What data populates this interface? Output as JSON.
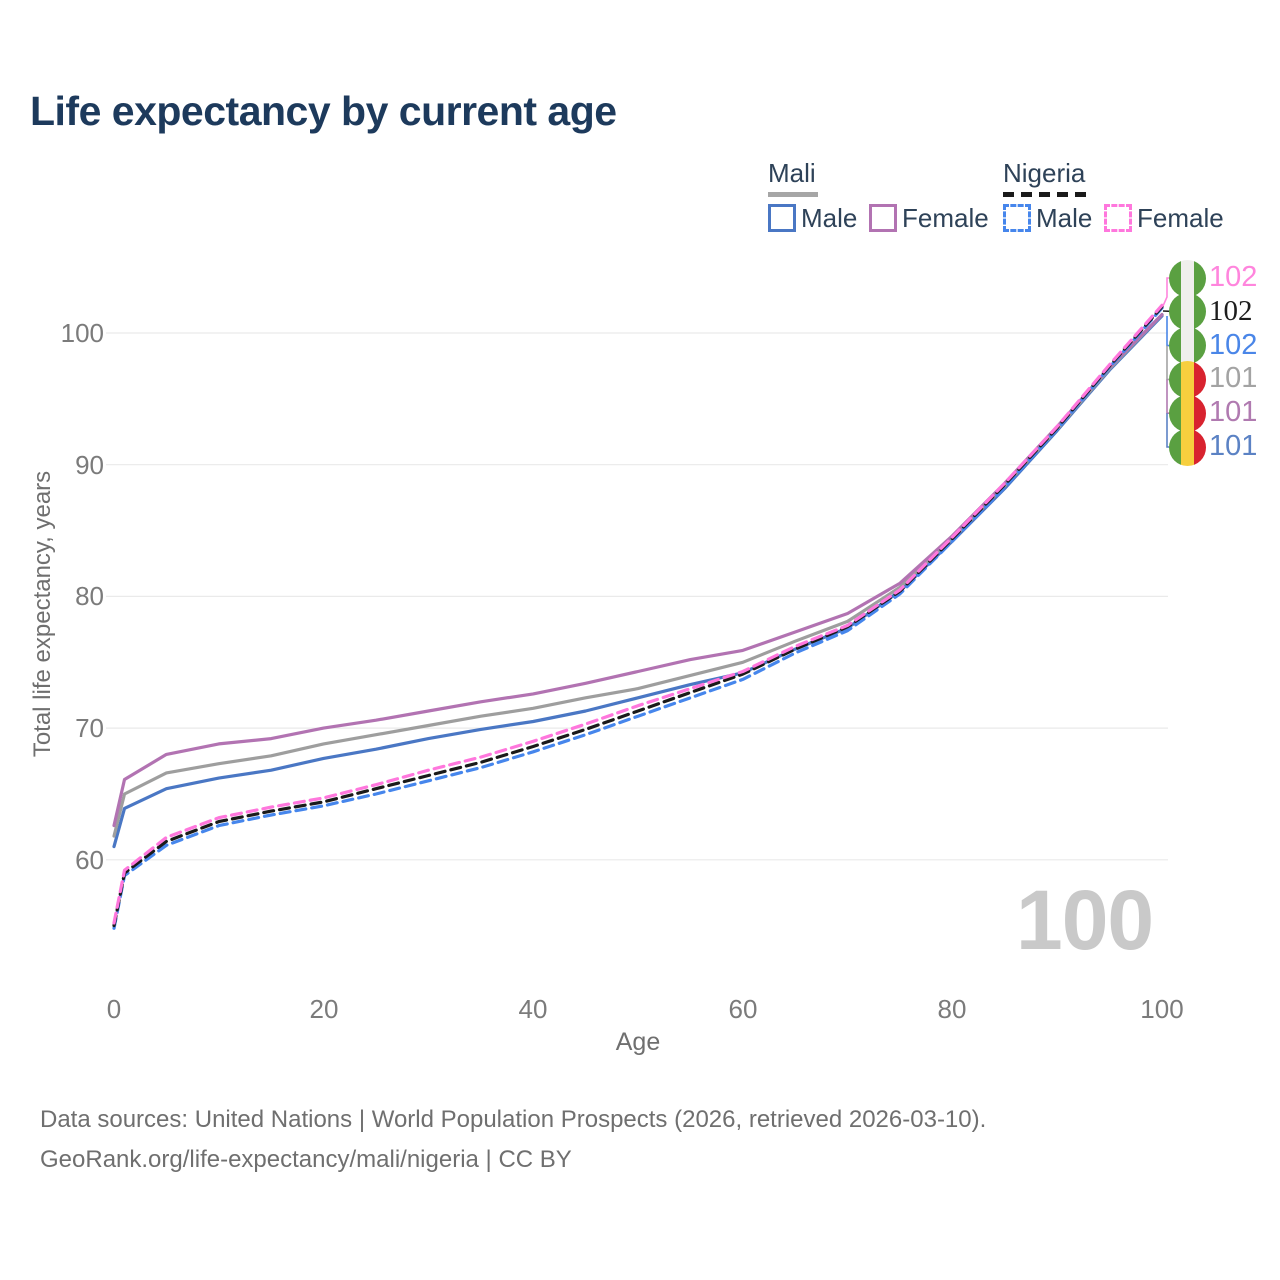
{
  "title": "Life expectancy by current age",
  "legend": {
    "groups": [
      {
        "name": "Mali",
        "line_style": "solid",
        "underline_color": "#a6a6a6",
        "entries": [
          {
            "label": "Male",
            "color": "#4a77c4",
            "dashed": false
          },
          {
            "label": "Female",
            "color": "#b273b2",
            "dashed": false
          }
        ]
      },
      {
        "name": "Nigeria",
        "line_style": "dashed",
        "underline_color": "#1a1a1a",
        "entries": [
          {
            "label": "Male",
            "color": "#4686ec",
            "dashed": true
          },
          {
            "label": "Female",
            "color": "#ff77dd",
            "dashed": true
          }
        ]
      }
    ]
  },
  "axes": {
    "y_label": "Total life expectancy, years",
    "x_label": "Age",
    "y_ticks": [
      100,
      90,
      80,
      70,
      60
    ],
    "x_ticks": [
      0,
      20,
      40,
      60,
      80,
      100
    ]
  },
  "hover": {
    "age_watermark": "100"
  },
  "end_labels": [
    {
      "value": "102",
      "color": "#ff85dd",
      "flag": "nigeria",
      "series": "Nigeria Female",
      "serif": false
    },
    {
      "value": "102",
      "color": "#1d1d1d",
      "flag": "nigeria",
      "series": "Nigeria (both sexes)",
      "serif": true
    },
    {
      "value": "102",
      "color": "#4a86e8",
      "flag": "nigeria",
      "series": "Nigeria Male",
      "serif": false
    },
    {
      "value": "101",
      "color": "#a3a3a3",
      "flag": "mali",
      "series": "Mali (both sexes)",
      "serif": false
    },
    {
      "value": "101",
      "color": "#b07ab0",
      "flag": "mali",
      "series": "Mali Female",
      "serif": false
    },
    {
      "value": "101",
      "color": "#5b82c4",
      "flag": "mali",
      "series": "Mali Male",
      "serif": false
    }
  ],
  "flags": {
    "mali": [
      "#5aa041",
      "#f7cf3e",
      "#d8232f"
    ],
    "nigeria": [
      "#5aa041",
      "#efefec",
      "#5aa041"
    ]
  },
  "colors": {
    "title": "#1d3a5c",
    "gridline": "#eaeaea",
    "tick_text": "#7b7b7b",
    "watermark": "#c9c9c9"
  },
  "source": {
    "line1": "Data sources: United Nations | World Population Prospects (2026, retrieved 2026-03-10).",
    "line2": "GeoRank.org/life-expectancy/mali/nigeria | CC BY"
  },
  "chart_data": {
    "type": "line",
    "title": "Life expectancy by current age",
    "xlabel": "Age",
    "ylabel": "Total life expectancy, years",
    "x_range": [
      0,
      100
    ],
    "y_ticks": [
      60,
      70,
      80,
      90,
      100
    ],
    "grid": "horizontal",
    "legend_position": "top-right",
    "x": [
      0,
      1,
      5,
      10,
      15,
      20,
      25,
      30,
      35,
      40,
      45,
      50,
      55,
      60,
      65,
      70,
      75,
      80,
      85,
      90,
      95,
      100
    ],
    "series": [
      {
        "name": "Mali Male",
        "color": "#4a77c4",
        "dash": "solid",
        "values": [
          61.0,
          63.9,
          65.4,
          66.2,
          66.8,
          67.7,
          68.4,
          69.2,
          69.9,
          70.5,
          71.3,
          72.3,
          73.3,
          74.2,
          76.0,
          77.6,
          80.4,
          84.2,
          88.2,
          92.6,
          97.2,
          101.3
        ]
      },
      {
        "name": "Mali (both sexes)",
        "color": "#9e9e9e",
        "dash": "solid",
        "values": [
          61.8,
          65.0,
          66.6,
          67.3,
          67.9,
          68.8,
          69.5,
          70.2,
          70.9,
          71.5,
          72.3,
          73.0,
          74.0,
          75.0,
          76.6,
          78.1,
          80.7,
          84.4,
          88.4,
          92.7,
          97.3,
          101.4
        ]
      },
      {
        "name": "Mali Female",
        "color": "#b273b2",
        "dash": "solid",
        "values": [
          62.6,
          66.1,
          68.0,
          68.8,
          69.2,
          70.0,
          70.6,
          71.3,
          72.0,
          72.6,
          73.4,
          74.3,
          75.2,
          75.9,
          77.3,
          78.7,
          81.0,
          84.6,
          88.6,
          92.9,
          97.4,
          101.4
        ]
      },
      {
        "name": "Nigeria Male",
        "color": "#4686ec",
        "dash": "dashed",
        "values": [
          54.8,
          58.8,
          61.1,
          62.6,
          63.4,
          64.1,
          65.0,
          66.0,
          67.0,
          68.2,
          69.5,
          70.9,
          72.3,
          73.7,
          75.7,
          77.4,
          80.2,
          84.2,
          88.3,
          92.7,
          97.4,
          101.9
        ]
      },
      {
        "name": "Nigeria (both sexes)",
        "color": "#1a1a1a",
        "dash": "dashed",
        "values": [
          55.0,
          59.0,
          61.4,
          62.9,
          63.7,
          64.4,
          65.4,
          66.4,
          67.4,
          68.6,
          69.9,
          71.3,
          72.7,
          74.1,
          76.0,
          77.7,
          80.4,
          84.4,
          88.5,
          92.8,
          97.5,
          102.0
        ]
      },
      {
        "name": "Nigeria Female",
        "color": "#ff77dd",
        "dash": "dashed",
        "values": [
          55.2,
          59.2,
          61.7,
          63.2,
          64.0,
          64.7,
          65.7,
          66.8,
          67.8,
          69.0,
          70.3,
          71.7,
          73.0,
          74.3,
          76.2,
          77.8,
          80.5,
          84.5,
          88.6,
          92.9,
          97.6,
          102.1
        ]
      }
    ]
  }
}
